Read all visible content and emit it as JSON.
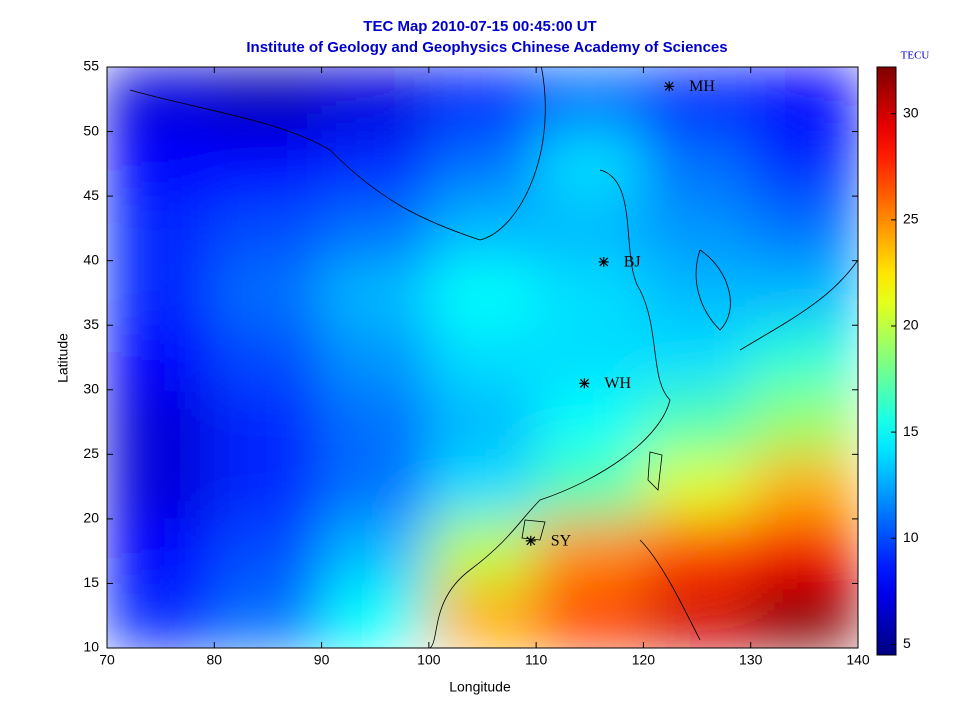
{
  "chart_data": {
    "type": "heatmap",
    "title": "TEC Map 2010-07-15 00:45:00 UT",
    "subtitle": "Institute of Geology and Geophysics Chinese Academy of Sciences",
    "xlabel": "Longitude",
    "ylabel": "Latitude",
    "x": [
      75,
      85,
      95,
      105,
      115,
      125,
      135
    ],
    "y": [
      12.5,
      17.5,
      22.5,
      27.5,
      32.5,
      37.5,
      42.5,
      47.5,
      52.5
    ],
    "z": [
      [
        9,
        11,
        15,
        24,
        27,
        30,
        32
      ],
      [
        8,
        10,
        13,
        20,
        25,
        27,
        29
      ],
      [
        7,
        9,
        11,
        14,
        17,
        21,
        24
      ],
      [
        7,
        9,
        11,
        13,
        15,
        17,
        19
      ],
      [
        8,
        10,
        12,
        14,
        14,
        14,
        16
      ],
      [
        9,
        11,
        13,
        15,
        14,
        13,
        13
      ],
      [
        9,
        10,
        11,
        13,
        13,
        12,
        11
      ],
      [
        8,
        8,
        9,
        11,
        14,
        11,
        9
      ],
      [
        7,
        6,
        7,
        9,
        11,
        9,
        8
      ]
    ],
    "xlim": [
      70,
      140
    ],
    "ylim": [
      10,
      55
    ],
    "xticks": [
      70,
      80,
      90,
      100,
      110,
      120,
      130,
      140
    ],
    "yticks": [
      10,
      15,
      20,
      25,
      30,
      35,
      40,
      45,
      50,
      55
    ],
    "colorbar": {
      "label": "TECU",
      "colormap": "jet",
      "lim": [
        4.5,
        32.2
      ],
      "ticks": [
        5,
        10,
        15,
        20,
        25,
        30
      ]
    },
    "stations": {
      "names": [
        "MH",
        "BJ",
        "WH",
        "SY"
      ],
      "lon": [
        122.4,
        116.3,
        114.5,
        109.5
      ],
      "lat": [
        53.5,
        39.9,
        30.5,
        18.3
      ]
    }
  }
}
